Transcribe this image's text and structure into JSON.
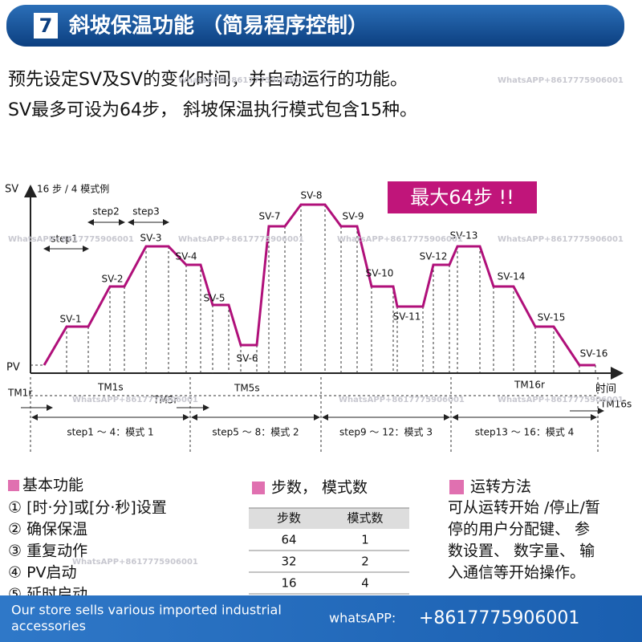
{
  "header": {
    "number": "7",
    "title": "斜坡保温功能 （简易程序控制）"
  },
  "intro": [
    "预先设定SV及SV的变化时间，并自动运行的功能。",
    "SV最多可设为64步， 斜坡保温执行模式包含15种。"
  ],
  "diagram": {
    "y_axis": "SV",
    "subtitle": "16 步 / 4 模式例",
    "x_axis": "时间",
    "pv": "PV",
    "badge": "最大64步 !!",
    "steps": [
      "step1",
      "step2",
      "step3"
    ],
    "sv_labels": [
      "SV-1",
      "SV-2",
      "SV-3",
      "SV-4",
      "SV-5",
      "SV-6",
      "SV-7",
      "SV-8",
      "SV-9",
      "SV-10",
      "SV-11",
      "SV-12",
      "SV-13",
      "SV-14",
      "SV-15",
      "SV-16"
    ],
    "timers": [
      "TM1r",
      "TM1s",
      "TM5r",
      "TM5s",
      "TM16r",
      "TM16s"
    ],
    "patterns": [
      "step1 ～ 4：模式 1",
      "step5 ～ 8：模式 2",
      "step9 ～ 12：模式 3",
      "step13 ～ 16：模式 4"
    ]
  },
  "basic": {
    "title": "基本功能",
    "items": [
      "① [时·分]或[分·秒]设置",
      "② 确保保温",
      "③ 重复动作",
      "④ PV启动",
      "⑤ 延时启动"
    ]
  },
  "table": {
    "title": "步数， 模式数",
    "header": [
      "步数",
      "模式数"
    ],
    "rows": [
      [
        64,
        1
      ],
      [
        32,
        2
      ],
      [
        16,
        4
      ]
    ]
  },
  "operation": {
    "title": "运转方法",
    "lines": [
      "可从运转开始 /停止/暂",
      "停的用户分配键、 参",
      "数设置、 数字量、 输",
      "入通信等开始操作。"
    ]
  },
  "footer": {
    "store": [
      "Our store sells various imported industrial",
      "accessories"
    ],
    "label": "whatsAPP:",
    "phone": "+8617775906001"
  },
  "watermark": "WhatsAPP+8617775906001"
}
